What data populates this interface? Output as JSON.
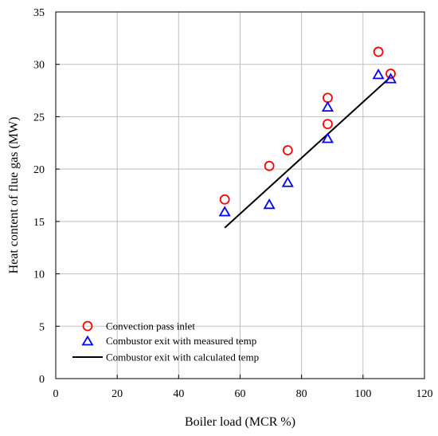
{
  "chart_data": {
    "type": "scatter",
    "xlabel": "Boiler load (MCR %)",
    "ylabel": "Heat content of flue gas (MW)",
    "xlim": [
      0,
      120
    ],
    "ylim": [
      0,
      35
    ],
    "xticks": [
      0,
      20,
      40,
      60,
      80,
      100,
      120
    ],
    "yticks": [
      0,
      5,
      10,
      15,
      20,
      25,
      30,
      35
    ],
    "grid": true,
    "legend_position": "bottom-left",
    "series": [
      {
        "name": "Convection pass inlet",
        "marker": "circle",
        "color": "#ff0000",
        "points": [
          {
            "x": 55,
            "y": 17.1
          },
          {
            "x": 69.5,
            "y": 20.3
          },
          {
            "x": 75.5,
            "y": 21.8
          },
          {
            "x": 88.5,
            "y": 24.3
          },
          {
            "x": 88.5,
            "y": 26.8
          },
          {
            "x": 105,
            "y": 31.2
          },
          {
            "x": 109,
            "y": 29.1
          }
        ]
      },
      {
        "name": "Combustor exit with measured temp",
        "marker": "triangle",
        "color": "#0000ff",
        "points": [
          {
            "x": 55,
            "y": 15.9
          },
          {
            "x": 69.5,
            "y": 16.6
          },
          {
            "x": 75.5,
            "y": 18.7
          },
          {
            "x": 88.5,
            "y": 22.9
          },
          {
            "x": 88.5,
            "y": 25.9
          },
          {
            "x": 105,
            "y": 29.0
          },
          {
            "x": 109,
            "y": 28.6
          }
        ]
      },
      {
        "name": "Combustor exit with calculated temp",
        "marker": "line",
        "color": "#000000",
        "points": [
          {
            "x": 55,
            "y": 14.4
          },
          {
            "x": 109,
            "y": 28.8
          }
        ]
      }
    ]
  }
}
